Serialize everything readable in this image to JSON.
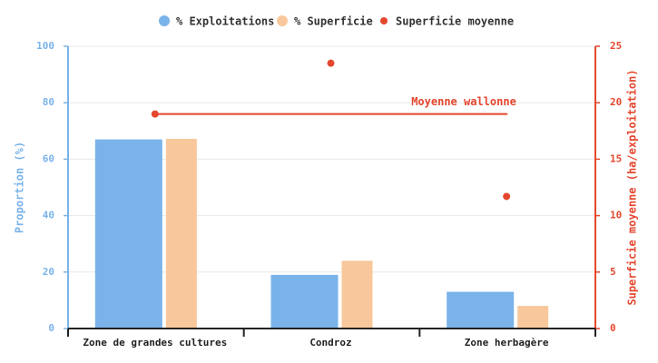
{
  "chart_data": {
    "type": "bar",
    "categories": [
      "Zone de grandes cultures",
      "Condroz",
      "Zone herbagère"
    ],
    "series": [
      {
        "name": "% Exploitations",
        "color": "#7ab3ea",
        "values": [
          67,
          19,
          13
        ]
      },
      {
        "name": "% Superficie",
        "color": "#f8c89c",
        "values": [
          67.2,
          24,
          8
        ]
      },
      {
        "name": "Superficie moyenne",
        "color": "#e4472e",
        "type": "scatter",
        "axis": "y2",
        "values": [
          19,
          23.5,
          11.7
        ]
      }
    ],
    "ylabel": "Proportion (%)",
    "y2label": "Superficie moyenne (ha/exploitation)",
    "ylim": [
      0,
      100
    ],
    "yticks": [
      0,
      20,
      40,
      60,
      80,
      100
    ],
    "y2lim": [
      0,
      25
    ],
    "y2ticks": [
      0,
      5,
      10,
      15,
      20,
      25
    ],
    "reference_line": {
      "label": "Moyenne wallonne",
      "value": 19,
      "axis": "y2",
      "color": "#e4472e"
    },
    "grid": true
  }
}
